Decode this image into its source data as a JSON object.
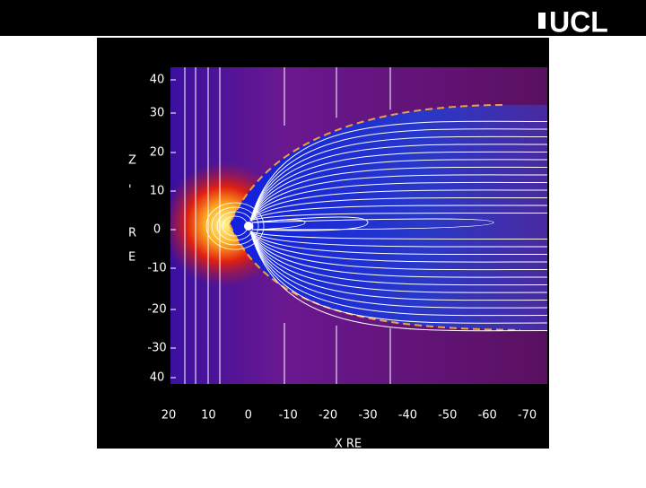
{
  "header": {
    "logo": "UCL"
  },
  "figure": {
    "y_axis_label": [
      "Z",
      "'",
      "R",
      "E"
    ],
    "y_tick_labels": [
      "40",
      "30",
      "20",
      "10",
      "0",
      "-10",
      "-20",
      "-30",
      "40"
    ],
    "x_tick_labels": [
      "20",
      "10",
      "0",
      "-10",
      "-20",
      "-30",
      "-40",
      "-50",
      "-60",
      "-70"
    ],
    "x_axis_label": "X RE"
  }
}
